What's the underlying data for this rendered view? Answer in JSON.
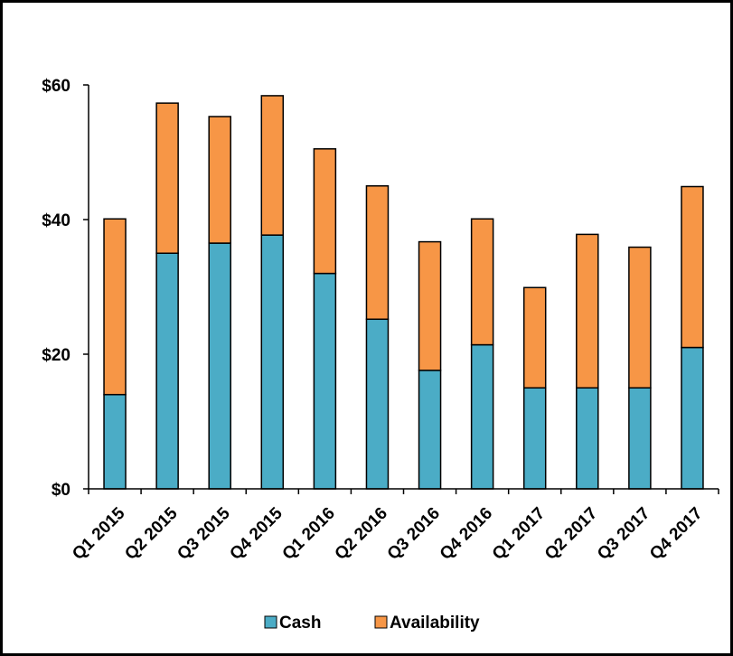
{
  "chart_data": {
    "type": "bar",
    "stacked": true,
    "categories": [
      "Q1 2015",
      "Q2 2015",
      "Q3 2015",
      "Q4 2015",
      "Q1 2016",
      "Q2 2016",
      "Q3 2016",
      "Q4 2016",
      "Q1 2017",
      "Q2 2017",
      "Q3 2017",
      "Q4 2017"
    ],
    "series": [
      {
        "name": "Cash",
        "color": "#4bacc6",
        "values": [
          14,
          35,
          36.5,
          37.7,
          32,
          25.2,
          17.6,
          21.4,
          15,
          15,
          15,
          21
        ]
      },
      {
        "name": "Availability",
        "color": "#f79646",
        "values": [
          26.1,
          22.3,
          18.8,
          20.7,
          18.5,
          19.8,
          19.1,
          18.7,
          14.9,
          22.8,
          20.9,
          23.9
        ]
      }
    ],
    "yticks": [
      0,
      20,
      40,
      60
    ],
    "ytick_labels": [
      "$0",
      "$20",
      "$40",
      "$60"
    ],
    "ylim": [
      0,
      60
    ],
    "legend_position": "bottom",
    "grid": false
  }
}
